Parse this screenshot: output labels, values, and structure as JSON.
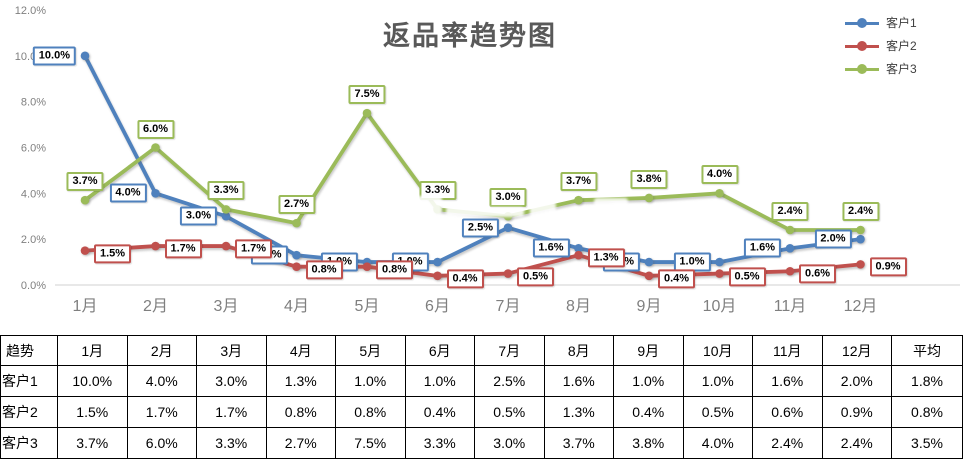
{
  "title": "返品率趋势图",
  "colors": {
    "series1": "#4F81BD",
    "series2": "#C0504D",
    "series3": "#9BBB59",
    "title_text": "#595959",
    "axis_text": "#7F7F7F",
    "baseline": "#D9D9D9",
    "table_border": "#000000",
    "label_text": "#000000",
    "label_bg": "#FFFFFF"
  },
  "legend": {
    "position": "top-right",
    "items": [
      {
        "label": "客户1",
        "color": "#4F81BD"
      },
      {
        "label": "客户2",
        "color": "#C0504D"
      },
      {
        "label": "客户3",
        "color": "#9BBB59"
      }
    ]
  },
  "chart_data": {
    "type": "line",
    "title": "返品率趋势图",
    "categories": [
      "1月",
      "2月",
      "3月",
      "4月",
      "5月",
      "6月",
      "7月",
      "8月",
      "9月",
      "10月",
      "11月",
      "12月"
    ],
    "yticks": [
      "0.0%",
      "2.0%",
      "4.0%",
      "6.0%",
      "8.0%",
      "10.0%",
      "12.0%"
    ],
    "ylim": [
      0,
      12
    ],
    "grid": false,
    "data_labels": true,
    "legend_position": "top-right",
    "series": [
      {
        "name": "客户1",
        "color": "#4F81BD",
        "values": [
          10.0,
          4.0,
          3.0,
          1.3,
          1.0,
          1.0,
          2.5,
          1.6,
          1.0,
          1.0,
          1.6,
          2.0
        ],
        "labels": [
          "10.0%",
          "4.0%",
          "3.0%",
          "1.3%",
          "1.0%",
          "1.0%",
          "2.5%",
          "1.6%",
          "1.0%",
          "1.0%",
          "1.6%",
          "2.0%"
        ]
      },
      {
        "name": "客户2",
        "color": "#C0504D",
        "values": [
          1.5,
          1.7,
          1.7,
          0.8,
          0.8,
          0.4,
          0.5,
          1.3,
          0.4,
          0.5,
          0.6,
          0.9
        ],
        "labels": [
          "1.5%",
          "1.7%",
          "1.7%",
          "0.8%",
          "0.8%",
          "0.4%",
          "0.5%",
          "1.3%",
          "0.4%",
          "0.5%",
          "0.6%",
          "0.9%"
        ]
      },
      {
        "name": "客户3",
        "color": "#9BBB59",
        "values": [
          3.7,
          6.0,
          3.3,
          2.7,
          7.5,
          3.3,
          3.0,
          3.7,
          3.8,
          4.0,
          2.4,
          2.4
        ],
        "labels": [
          "3.7%",
          "6.0%",
          "3.3%",
          "2.7%",
          "7.5%",
          "3.3%",
          "3.0%",
          "3.7%",
          "3.8%",
          "4.0%",
          "2.4%",
          "2.4%"
        ]
      }
    ]
  },
  "table": {
    "corner_label": "趋势",
    "columns": [
      "1月",
      "2月",
      "3月",
      "4月",
      "5月",
      "6月",
      "7月",
      "8月",
      "9月",
      "10月",
      "11月",
      "12月",
      "平均"
    ],
    "rows": [
      {
        "label": "客户1",
        "values": [
          "10.0%",
          "4.0%",
          "3.0%",
          "1.3%",
          "1.0%",
          "1.0%",
          "2.5%",
          "1.6%",
          "1.0%",
          "1.0%",
          "1.6%",
          "2.0%",
          "1.8%"
        ]
      },
      {
        "label": "客户2",
        "values": [
          "1.5%",
          "1.7%",
          "1.7%",
          "0.8%",
          "0.8%",
          "0.4%",
          "0.5%",
          "1.3%",
          "0.4%",
          "0.5%",
          "0.6%",
          "0.9%",
          "0.8%"
        ]
      },
      {
        "label": "客户3",
        "values": [
          "3.7%",
          "6.0%",
          "3.3%",
          "2.7%",
          "7.5%",
          "3.3%",
          "3.0%",
          "3.7%",
          "3.8%",
          "4.0%",
          "2.4%",
          "2.4%",
          "3.5%"
        ]
      }
    ]
  }
}
